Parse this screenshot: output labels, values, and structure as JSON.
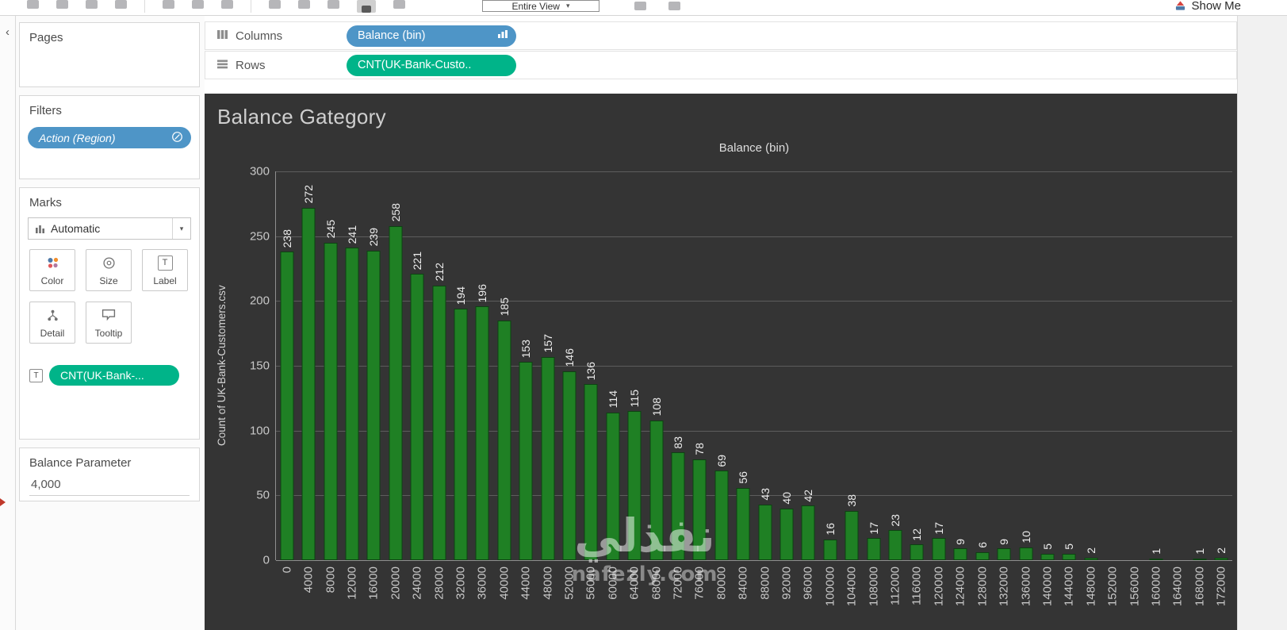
{
  "toolbar": {
    "view_mode": "Entire View",
    "show_me": "Show Me"
  },
  "shelves": {
    "columns_label": "Columns",
    "rows_label": "Rows",
    "columns_pill": "Balance (bin)",
    "rows_pill": "CNT(UK-Bank-Custo.."
  },
  "sidebar": {
    "pages_title": "Pages",
    "filters_title": "Filters",
    "filter_pill": "Action (Region)",
    "marks_title": "Marks",
    "marks_type": "Automatic",
    "mark_buttons": [
      "Color",
      "Size",
      "Label",
      "Detail",
      "Tooltip"
    ],
    "marks_pill": "CNT(UK-Bank-...",
    "parameter_title": "Balance Parameter",
    "parameter_value": "4,000"
  },
  "icons": {
    "label_glyph": "T",
    "collapse_chevron": "‹",
    "caret_down": "▾"
  },
  "watermark": {
    "arabic": "نفذلي",
    "domain": "nafezly.com"
  },
  "colors": {
    "pill_blue": "#4e95c7",
    "pill_green": "#00b489",
    "chart_bg": "#343434"
  },
  "chart_data": {
    "type": "bar",
    "title": "Balance Gategory",
    "column_header": "Balance (bin)",
    "xlabel": "",
    "ylabel": "Count of UK-Bank-Customers.csv",
    "ylim": [
      0,
      300
    ],
    "yticks": [
      0,
      50,
      100,
      150,
      200,
      250,
      300
    ],
    "grid": true,
    "legend": false,
    "bar_color": "#1f8024",
    "categories": [
      "0",
      "4000",
      "8000",
      "12000",
      "16000",
      "20000",
      "24000",
      "28000",
      "32000",
      "36000",
      "40000",
      "44000",
      "48000",
      "52000",
      "56000",
      "60000",
      "64000",
      "68000",
      "72000",
      "76000",
      "80000",
      "84000",
      "88000",
      "92000",
      "96000",
      "100000",
      "104000",
      "108000",
      "112000",
      "116000",
      "120000",
      "124000",
      "128000",
      "132000",
      "136000",
      "140000",
      "144000",
      "148000",
      "152000",
      "156000",
      "160000",
      "164000",
      "168000",
      "172000"
    ],
    "values": [
      238,
      272,
      245,
      241,
      239,
      258,
      221,
      212,
      194,
      196,
      185,
      153,
      157,
      146,
      136,
      114,
      115,
      108,
      83,
      78,
      69,
      56,
      43,
      40,
      42,
      16,
      38,
      17,
      23,
      12,
      17,
      9,
      6,
      9,
      10,
      5,
      5,
      2,
      0,
      0,
      1,
      0,
      1,
      2
    ]
  }
}
